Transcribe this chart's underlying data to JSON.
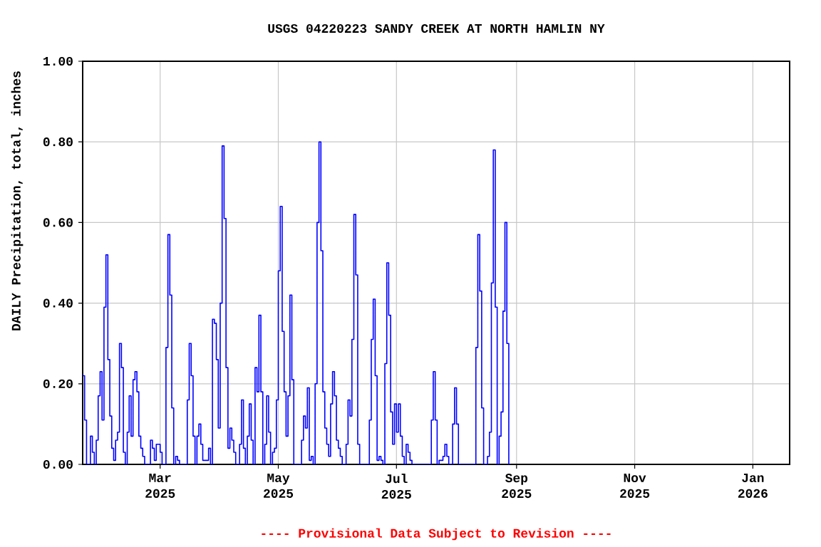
{
  "chart_data": {
    "type": "step",
    "title": "USGS 04220223 SANDY CREEK AT NORTH HAMLIN NY",
    "ylabel": "DAILY Precipitation, total, inches",
    "annotations": [
      "---- Provisional Data Subject to Revision ----"
    ],
    "xlim": [
      "2025-01-20",
      "2026-01-20"
    ],
    "xticks": [
      {
        "value": "2025-03-01",
        "label": "Mar 2025"
      },
      {
        "value": "2025-05-01",
        "label": "May 2025"
      },
      {
        "value": "2025-07-01",
        "label": "Jul 2025"
      },
      {
        "value": "2025-09-01",
        "label": "Sep 2025"
      },
      {
        "value": "2025-11-01",
        "label": "Nov 2025"
      },
      {
        "value": "2026-01-01",
        "label": "Jan 2026"
      }
    ],
    "ylim": [
      0,
      1
    ],
    "yticks": [
      {
        "value": 0,
        "label": "0.00"
      },
      {
        "value": 0.2,
        "label": "0.20"
      },
      {
        "value": 0.4,
        "label": "0.40"
      },
      {
        "value": 0.6,
        "label": "0.60"
      },
      {
        "value": 0.8,
        "label": "0.80"
      },
      {
        "value": 1,
        "label": "1.00"
      }
    ],
    "grid": true,
    "series": [
      {
        "color": "#0000ff",
        "x": [
          "2025-01-20",
          "2025-01-21",
          "2025-01-22",
          "2025-01-24",
          "2025-01-25",
          "2025-01-26",
          "2025-01-27",
          "2025-01-28",
          "2025-01-29",
          "2025-01-30",
          "2025-01-31",
          "2025-02-01",
          "2025-02-02",
          "2025-02-03",
          "2025-02-04",
          "2025-02-05",
          "2025-02-06",
          "2025-02-07",
          "2025-02-08",
          "2025-02-09",
          "2025-02-10",
          "2025-02-11",
          "2025-02-12",
          "2025-02-13",
          "2025-02-14",
          "2025-02-15",
          "2025-02-16",
          "2025-02-17",
          "2025-02-18",
          "2025-02-19",
          "2025-02-20",
          "2025-02-21",
          "2025-02-24",
          "2025-02-25",
          "2025-02-26",
          "2025-02-27",
          "2025-02-28",
          "2025-03-01",
          "2025-03-02",
          "2025-03-04",
          "2025-03-05",
          "2025-03-06",
          "2025-03-07",
          "2025-03-08",
          "2025-03-09",
          "2025-03-10",
          "2025-03-11",
          "2025-03-15",
          "2025-03-16",
          "2025-03-17",
          "2025-03-18",
          "2025-03-19",
          "2025-03-20",
          "2025-03-21",
          "2025-03-22",
          "2025-03-23",
          "2025-03-24",
          "2025-03-25",
          "2025-03-26",
          "2025-03-27",
          "2025-03-28",
          "2025-03-29",
          "2025-03-30",
          "2025-03-31",
          "2025-04-01",
          "2025-04-02",
          "2025-04-03",
          "2025-04-04",
          "2025-04-05",
          "2025-04-06",
          "2025-04-07",
          "2025-04-08",
          "2025-04-09",
          "2025-04-11",
          "2025-04-12",
          "2025-04-13",
          "2025-04-14",
          "2025-04-15",
          "2025-04-16",
          "2025-04-17",
          "2025-04-18",
          "2025-04-19",
          "2025-04-20",
          "2025-04-21",
          "2025-04-22",
          "2025-04-23",
          "2025-04-24",
          "2025-04-25",
          "2025-04-26",
          "2025-04-27",
          "2025-04-28",
          "2025-04-29",
          "2025-04-30",
          "2025-05-01",
          "2025-05-02",
          "2025-05-03",
          "2025-05-04",
          "2025-05-05",
          "2025-05-06",
          "2025-05-07",
          "2025-05-08",
          "2025-05-09",
          "2025-05-13",
          "2025-05-14",
          "2025-05-15",
          "2025-05-16",
          "2025-05-17",
          "2025-05-18",
          "2025-05-19",
          "2025-05-20",
          "2025-05-21",
          "2025-05-22",
          "2025-05-23",
          "2025-05-24",
          "2025-05-25",
          "2025-05-26",
          "2025-05-27",
          "2025-05-28",
          "2025-05-29",
          "2025-05-30",
          "2025-05-31",
          "2025-06-01",
          "2025-06-02",
          "2025-06-03",
          "2025-06-05",
          "2025-06-06",
          "2025-06-07",
          "2025-06-08",
          "2025-06-09",
          "2025-06-10",
          "2025-06-11",
          "2025-06-12",
          "2025-06-17",
          "2025-06-18",
          "2025-06-19",
          "2025-06-20",
          "2025-06-21",
          "2025-06-22",
          "2025-06-23",
          "2025-06-24",
          "2025-06-25",
          "2025-06-26",
          "2025-06-27",
          "2025-06-28",
          "2025-06-29",
          "2025-06-30",
          "2025-07-01",
          "2025-07-02",
          "2025-07-03",
          "2025-07-04",
          "2025-07-05",
          "2025-07-06",
          "2025-07-07",
          "2025-07-08",
          "2025-07-09",
          "2025-07-19",
          "2025-07-20",
          "2025-07-21",
          "2025-07-22",
          "2025-07-23",
          "2025-07-24",
          "2025-07-25",
          "2025-07-26",
          "2025-07-27",
          "2025-07-28",
          "2025-07-30",
          "2025-07-31",
          "2025-08-01",
          "2025-08-02",
          "2025-08-11",
          "2025-08-12",
          "2025-08-13",
          "2025-08-14",
          "2025-08-15",
          "2025-08-17",
          "2025-08-18",
          "2025-08-19",
          "2025-08-20",
          "2025-08-21",
          "2025-08-22",
          "2025-08-23",
          "2025-08-24",
          "2025-08-25",
          "2025-08-26",
          "2025-08-27",
          "2025-08-28"
        ],
        "values": [
          0.22,
          0.11,
          0,
          0.07,
          0.03,
          0,
          0.06,
          0.17,
          0.23,
          0.11,
          0.39,
          0.52,
          0.26,
          0.12,
          0.04,
          0.01,
          0.06,
          0.08,
          0.3,
          0.24,
          0.03,
          0,
          0.08,
          0.17,
          0.07,
          0.21,
          0.23,
          0.18,
          0.07,
          0.04,
          0.02,
          0,
          0.06,
          0.04,
          0.01,
          0.05,
          0.05,
          0.03,
          0,
          0.29,
          0.57,
          0.42,
          0.14,
          0,
          0.02,
          0.01,
          0,
          0.16,
          0.3,
          0.22,
          0.07,
          0,
          0.07,
          0.1,
          0.05,
          0.01,
          0.01,
          0.01,
          0.04,
          0,
          0.36,
          0.35,
          0.26,
          0.09,
          0.4,
          0.79,
          0.61,
          0.24,
          0.04,
          0.09,
          0.06,
          0.03,
          0,
          0.05,
          0.16,
          0.04,
          0,
          0.07,
          0.15,
          0.06,
          0,
          0.24,
          0.18,
          0.37,
          0.18,
          0,
          0.05,
          0.17,
          0.08,
          0,
          0.03,
          0.04,
          0.16,
          0.48,
          0.64,
          0.33,
          0.18,
          0.07,
          0.17,
          0.42,
          0.21,
          0,
          0.06,
          0.12,
          0.09,
          0.19,
          0.01,
          0.02,
          0,
          0.2,
          0.6,
          0.8,
          0.53,
          0.18,
          0.09,
          0.05,
          0.02,
          0.15,
          0.23,
          0.17,
          0.06,
          0.04,
          0.02,
          0,
          0.05,
          0.16,
          0.12,
          0.31,
          0.62,
          0.47,
          0.05,
          0,
          0.11,
          0.31,
          0.41,
          0.22,
          0.01,
          0.02,
          0.01,
          0,
          0.25,
          0.5,
          0.37,
          0.13,
          0.05,
          0.15,
          0.08,
          0.15,
          0.07,
          0.02,
          0,
          0.05,
          0.03,
          0.01,
          0,
          0.11,
          0.23,
          0.11,
          0,
          0.01,
          0.01,
          0.02,
          0.05,
          0.02,
          0,
          0.1,
          0.19,
          0.1,
          0,
          0.29,
          0.57,
          0.43,
          0.14,
          0,
          0.02,
          0.08,
          0.45,
          0.78,
          0.39,
          0,
          0.07,
          0.13,
          0.38,
          0.6,
          0.3,
          0
        ]
      }
    ]
  }
}
